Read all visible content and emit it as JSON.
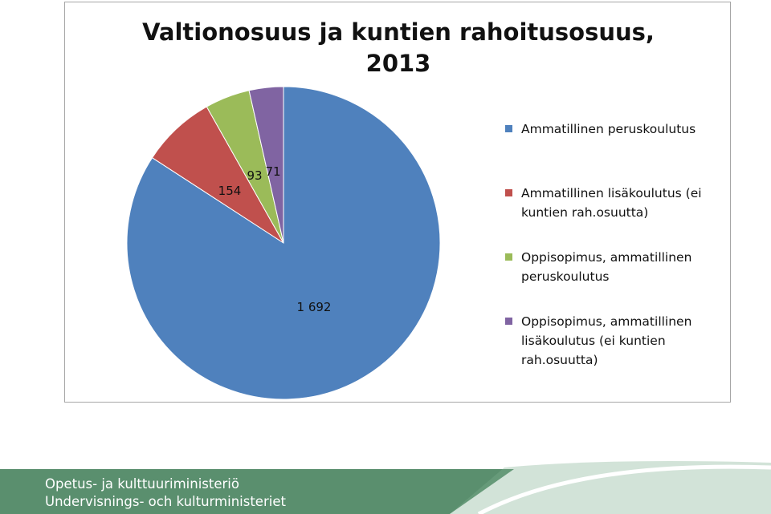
{
  "chart_data": {
    "type": "pie",
    "title": [
      "Valtionosuus ja kuntien rahoitusosuus,",
      "2013"
    ],
    "categories": [
      "Ammatillinen peruskoulutus",
      "Ammatillinen lisäkoulutus (ei kuntien rah.osuutta)",
      "Oppisopimus, ammatillinen peruskoulutus",
      "Oppisopimus, ammatillinen lisäkoulutus (ei kuntien rah.osuutta)"
    ],
    "values": [
      1692,
      154,
      93,
      71
    ],
    "value_labels": [
      "1 692",
      "154",
      "93",
      "71"
    ],
    "colors": [
      "#4f81bd",
      "#c0504d",
      "#9bbb59",
      "#8064a2"
    ],
    "legend_position": "right",
    "legend_lines": [
      [
        "Ammatillinen peruskoulutus"
      ],
      [
        "Ammatillinen lisäkoulutus (ei",
        "kuntien rah.osuutta)"
      ],
      [
        "Oppisopimus, ammatillinen",
        "peruskoulutus"
      ],
      [
        "Oppisopimus, ammatillinen",
        "lisäkoulutus (ei kuntien",
        "rah.osuutta)"
      ]
    ]
  },
  "footer": {
    "line1": "Opetus- ja kulttuuriministeriö",
    "line2": "Undervisnings- och kulturministeriet",
    "color": "#5a8f6e"
  }
}
